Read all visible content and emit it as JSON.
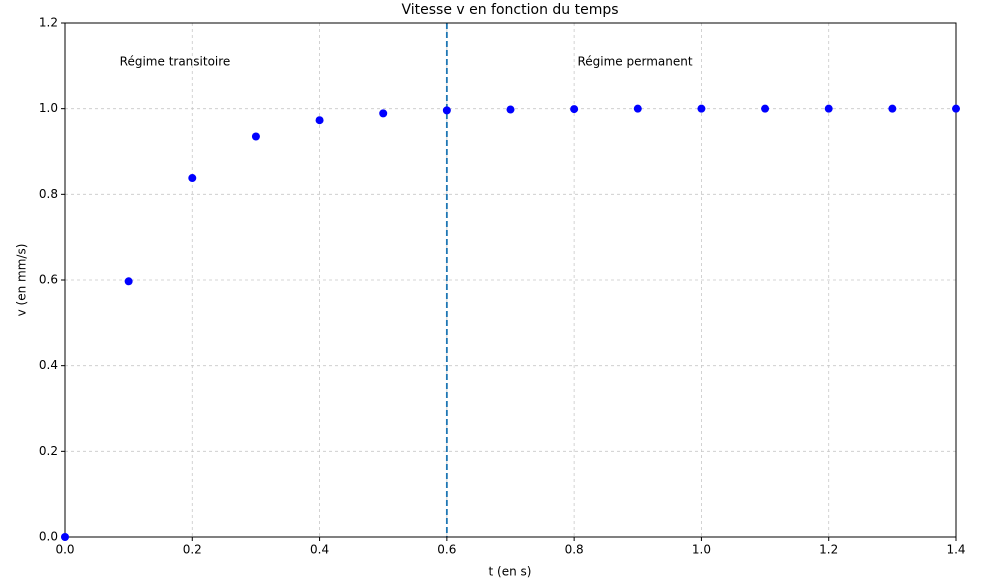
{
  "chart_data": {
    "type": "scatter",
    "title": "Vitesse v en fonction du temps",
    "xlabel": "t (en s)",
    "ylabel": "v (en mm/s)",
    "annotations": [
      "Régime transitoire",
      "Régime permanent"
    ],
    "x": [
      0,
      0.1,
      0.2,
      0.3,
      0.4,
      0.5,
      0.6,
      0.7,
      0.8,
      0.9,
      1.0,
      1.1,
      1.2,
      1.3,
      1.4
    ],
    "values": [
      0,
      0.597,
      0.838,
      0.935,
      0.973,
      0.989,
      0.996,
      0.998,
      0.999,
      1.0,
      1.0,
      1.0,
      1.0,
      1.0,
      1.0
    ],
    "color": "#0000ff",
    "vlines": [
      {
        "x": 0.6,
        "color": "#1f77b4"
      }
    ],
    "xlim": [
      0,
      1.4
    ],
    "ylim": [
      0,
      1.2
    ],
    "xticks": [
      {
        "value": 0,
        "label": "0.0"
      },
      0.2,
      0.4,
      0.6,
      0.8,
      {
        "value": 1,
        "label": "1.0"
      },
      1.2,
      1.4
    ],
    "yticks": [
      {
        "value": 0,
        "label": "0.0"
      },
      0.2,
      0.4,
      0.6,
      0.8,
      {
        "value": 1,
        "label": "1.0"
      },
      1.2
    ],
    "grid": true
  }
}
